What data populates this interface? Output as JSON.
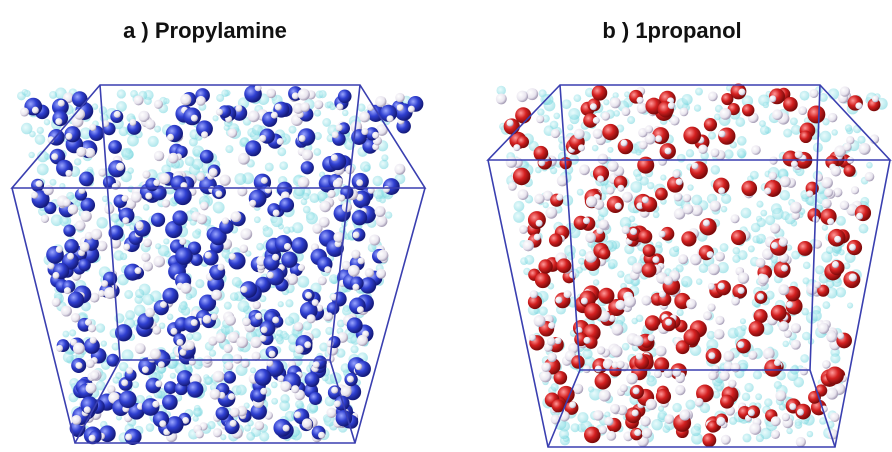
{
  "panels": [
    {
      "title": "a ) Propylamine"
    },
    {
      "title": "b ) 1propanol"
    }
  ]
}
